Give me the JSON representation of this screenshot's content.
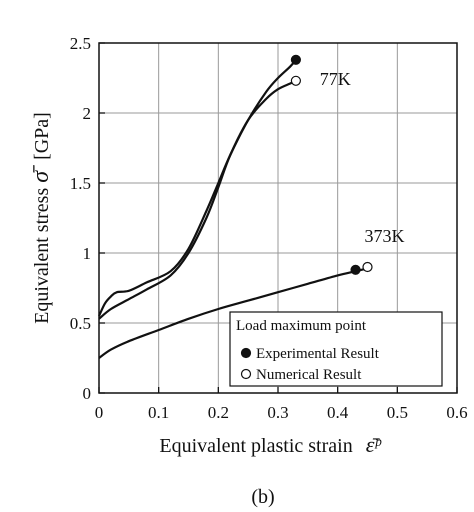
{
  "chart_data": {
    "type": "line",
    "xlabel": "Equivalent plastic strain",
    "xlabel_symbol": "ε̄ᵖ",
    "ylabel": "Equivalent stress",
    "ylabel_symbol": "σ̄",
    "ylabel_unit": "[GPa]",
    "xlim": [
      0,
      0.6
    ],
    "ylim": [
      0,
      2.5
    ],
    "xticks": [
      "0",
      "0.1",
      "0.2",
      "0.3",
      "0.4",
      "0.5",
      "0.6"
    ],
    "yticks": [
      "0",
      "0.5",
      "1",
      "1.5",
      "2",
      "2.5"
    ],
    "grid": true,
    "caption": "(b)",
    "series": [
      {
        "name": "77K",
        "variant": "experimental",
        "x": [
          0,
          0.01,
          0.02,
          0.03,
          0.05,
          0.08,
          0.12,
          0.15,
          0.18,
          0.2,
          0.22,
          0.25,
          0.28,
          0.3,
          0.32,
          0.33
        ],
        "y": [
          0.55,
          0.64,
          0.69,
          0.72,
          0.73,
          0.79,
          0.87,
          1.03,
          1.3,
          1.5,
          1.7,
          1.95,
          2.15,
          2.25,
          2.33,
          2.38
        ]
      },
      {
        "name": "77K",
        "variant": "numerical",
        "x": [
          0,
          0.02,
          0.05,
          0.08,
          0.12,
          0.15,
          0.18,
          0.2,
          0.22,
          0.25,
          0.28,
          0.3,
          0.32,
          0.33
        ],
        "y": [
          0.53,
          0.6,
          0.67,
          0.74,
          0.84,
          1.0,
          1.25,
          1.47,
          1.7,
          1.95,
          2.1,
          2.17,
          2.21,
          2.23
        ]
      },
      {
        "name": "373K",
        "variant": "both",
        "x": [
          0,
          0.02,
          0.05,
          0.1,
          0.15,
          0.2,
          0.25,
          0.3,
          0.35,
          0.4,
          0.43,
          0.45
        ],
        "y": [
          0.25,
          0.31,
          0.37,
          0.45,
          0.53,
          0.6,
          0.66,
          0.72,
          0.78,
          0.84,
          0.87,
          0.89
        ]
      }
    ],
    "max_points": {
      "experimental": [
        [
          0.33,
          2.38
        ],
        [
          0.43,
          0.88
        ]
      ],
      "numerical": [
        [
          0.33,
          2.23
        ],
        [
          0.45,
          0.9
        ]
      ]
    },
    "curve_labels": [
      {
        "text": "77K",
        "x": 0.37,
        "y": 2.2
      },
      {
        "text": "373K",
        "x": 0.445,
        "y": 1.08
      }
    ],
    "legend": {
      "title": "Load maximum point",
      "placement": "bottom-right",
      "items": [
        {
          "marker": "filled-circle",
          "label": "Experimental Result"
        },
        {
          "marker": "open-circle",
          "label": "Numerical Result"
        }
      ]
    }
  }
}
